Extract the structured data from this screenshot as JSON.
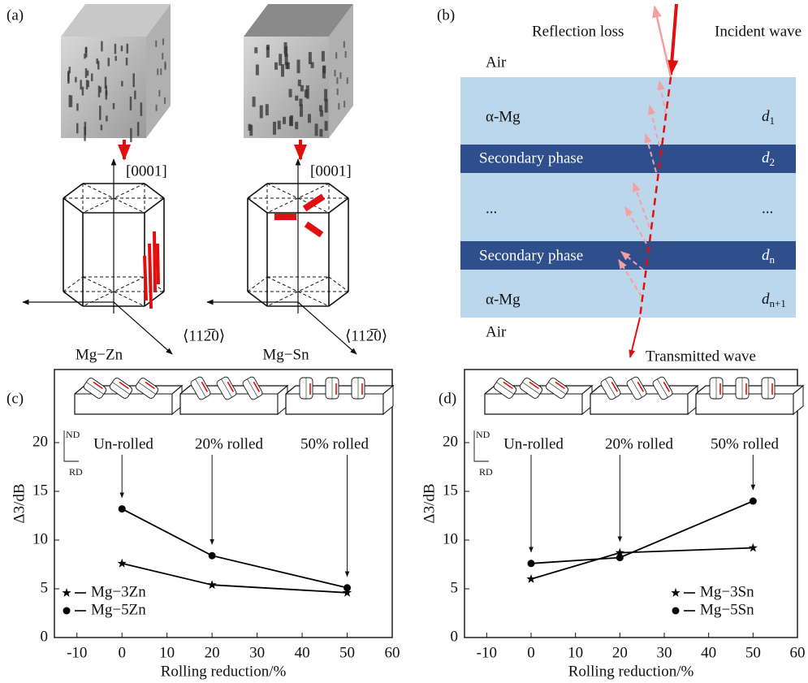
{
  "panel_a": {
    "label": "(a)",
    "crystals": [
      {
        "name": "Mg−Zn",
        "c_axis": "[0001]",
        "a_axis": "⟨112̅0⟩"
      },
      {
        "name": "Mg−Sn",
        "c_axis": "[0001]",
        "a_axis": "⟨112̅0⟩"
      }
    ]
  },
  "panel_b": {
    "label": "(b)",
    "reflection": "Reflection loss",
    "incident": "Incident wave",
    "transmitted": "Transmitted wave",
    "air_top": "Air",
    "air_bottom": "Air",
    "layers": [
      {
        "name": "α-Mg",
        "thickness": {
          "symbol": "d",
          "subscript": "1"
        }
      },
      {
        "name": "Secondary phase",
        "thickness": {
          "symbol": "d",
          "subscript": "2"
        }
      },
      {
        "name": "...",
        "thickness": {
          "symbol": "..."
        }
      },
      {
        "name": "Secondary phase",
        "thickness": {
          "symbol": "d",
          "subscript": "n"
        }
      },
      {
        "name": "α-Mg",
        "thickness": {
          "symbol": "d",
          "subscript": "n+1"
        }
      }
    ]
  },
  "chart_data": [
    {
      "type": "line",
      "panel_label": "(c)",
      "xlabel": "Rolling reduction/%",
      "ylabel": "Δ3/dB",
      "x": [
        0,
        20,
        50
      ],
      "xlim": [
        -15,
        60
      ],
      "xticks": [
        -10,
        0,
        10,
        20,
        30,
        40,
        50,
        60
      ],
      "ylim": [
        0,
        27.5
      ],
      "yticks": [
        0,
        5,
        10,
        15,
        20
      ],
      "legend": "lower left",
      "annotations": [
        "Un-rolled",
        "20% rolled",
        "50% rolled"
      ],
      "nd_label": "ND",
      "rd_label": "RD",
      "series": [
        {
          "name": "Mg−3Zn",
          "color": "#000000",
          "marker": "star",
          "values": [
            7.6,
            5.4,
            4.6
          ]
        },
        {
          "name": "Mg−5Zn",
          "color": "#000000",
          "marker": "circle",
          "values": [
            13.2,
            8.4,
            5.1
          ]
        }
      ]
    },
    {
      "type": "line",
      "panel_label": "(d)",
      "xlabel": "Rolling reduction/%",
      "ylabel": "Δ3/dB",
      "x": [
        0,
        20,
        50
      ],
      "xlim": [
        -15,
        60
      ],
      "xticks": [
        -10,
        0,
        10,
        20,
        30,
        40,
        50,
        60
      ],
      "ylim": [
        0,
        27.5
      ],
      "yticks": [
        0,
        5,
        10,
        15,
        20
      ],
      "legend": "lower right",
      "annotations": [
        "Un-rolled",
        "20% rolled",
        "50% rolled"
      ],
      "nd_label": "ND",
      "rd_label": "RD",
      "series": [
        {
          "name": "Mg−3Sn",
          "color": "#000000",
          "marker": "star",
          "values": [
            6.0,
            8.7,
            9.2
          ]
        },
        {
          "name": "Mg−5Sn",
          "color": "#000000",
          "marker": "circle",
          "values": [
            7.6,
            8.2,
            14.0
          ]
        }
      ]
    }
  ]
}
